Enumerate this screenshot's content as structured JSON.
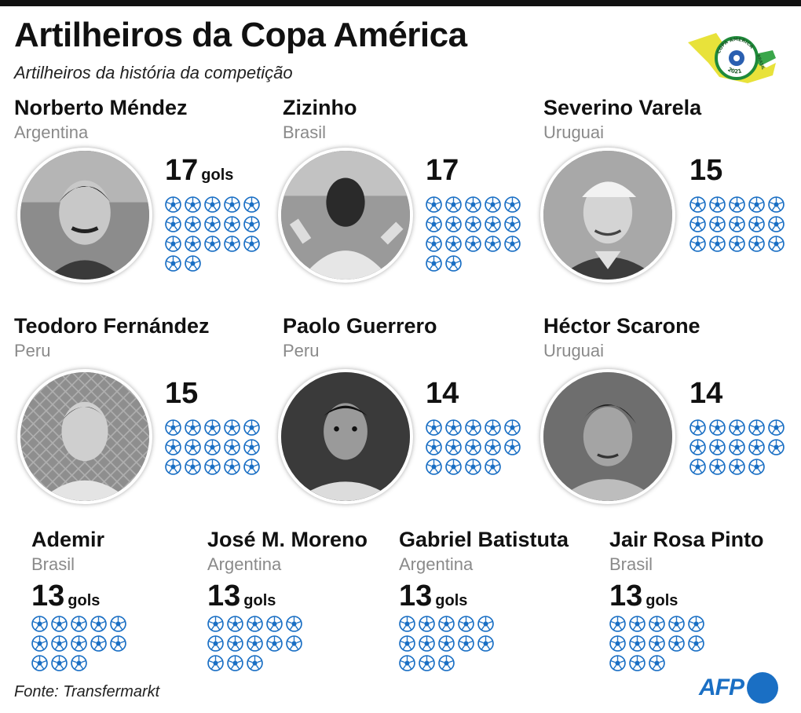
{
  "title": "Artilheiros da Copa América",
  "subtitle": "Artilheiros da história da competição",
  "logo": {
    "line1": "COPA AMERICA",
    "line2": "BRASIL",
    "year": "2021"
  },
  "unit_label": "gols",
  "players": [
    {
      "name": "Norberto Méndez",
      "country": "Argentina",
      "goals": 17,
      "goals_text": "17",
      "unit": "gols"
    },
    {
      "name": "Zizinho",
      "country": "Brasil",
      "goals": 17,
      "goals_text": "17",
      "unit": ""
    },
    {
      "name": "Severino Varela",
      "country": "Uruguai",
      "goals": 15,
      "goals_text": "15",
      "unit": ""
    },
    {
      "name": "Teodoro Fernández",
      "country": "Peru",
      "goals": 15,
      "goals_text": "15",
      "unit": ""
    },
    {
      "name": "Paolo Guerrero",
      "country": "Peru",
      "goals": 14,
      "goals_text": "14",
      "unit": ""
    },
    {
      "name": "Héctor Scarone",
      "country": "Uruguai",
      "goals": 14,
      "goals_text": "14",
      "unit": ""
    },
    {
      "name": "Ademir",
      "country": "Brasil",
      "goals": 13,
      "goals_text": "13",
      "unit": "gols"
    },
    {
      "name": "José M. Moreno",
      "country": "Argentina",
      "goals": 13,
      "goals_text": "13",
      "unit": "gols"
    },
    {
      "name": "Gabriel Batistuta",
      "country": "Argentina",
      "goals": 13,
      "goals_text": "13",
      "unit": "gols"
    },
    {
      "name": "Jair Rosa Pinto",
      "country": "Brasil",
      "goals": 13,
      "goals_text": "13",
      "unit": "gols"
    }
  ],
  "source": "Fonte: Transfermarkt",
  "credit": "AFP",
  "colors": {
    "ball": "#1a6fc4",
    "accent": "#1a6fc4",
    "country": "#8a8a8a"
  },
  "icons": {
    "goal": "soccer-ball-icon",
    "logo": "copa-america-logo"
  }
}
